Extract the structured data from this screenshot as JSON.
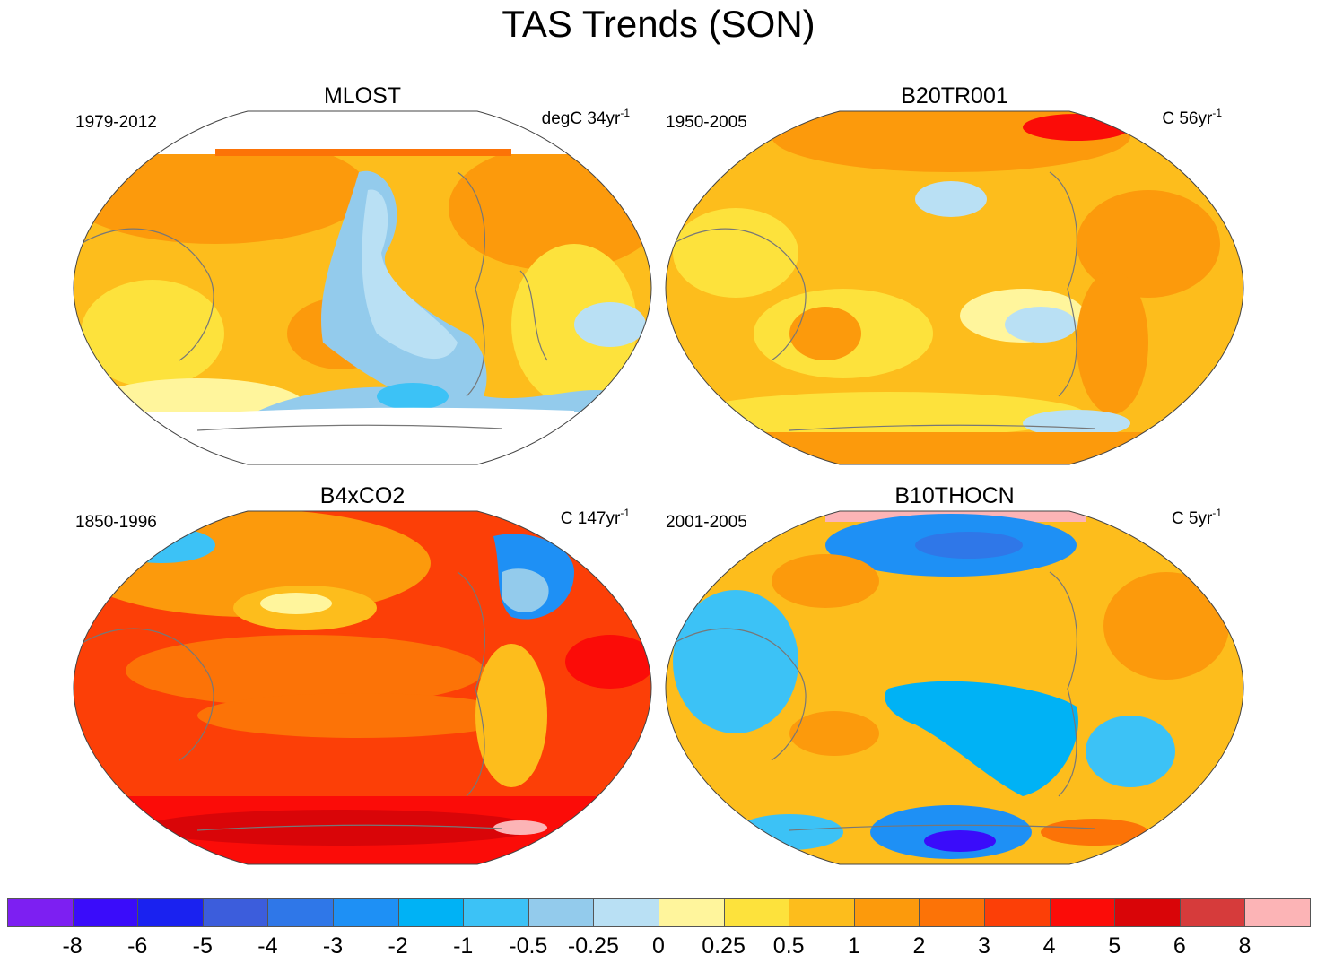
{
  "title": "TAS Trends (SON)",
  "panels": [
    {
      "id": "mlost",
      "name": "MLOST",
      "period": "1979-2012",
      "units_prefix": "degC 34yr",
      "units_exp": "-1"
    },
    {
      "id": "b20tr001",
      "name": "B20TR001",
      "period": "1950-2005",
      "units_prefix": "C 56yr",
      "units_exp": "-1"
    },
    {
      "id": "b4xco2",
      "name": "B4xCO2",
      "period": "1850-1996",
      "units_prefix": "C 147yr",
      "units_exp": "-1"
    },
    {
      "id": "b10thocn",
      "name": "B10THOCN",
      "period": "2001-2005",
      "units_prefix": "C 5yr",
      "units_exp": "-1"
    }
  ],
  "colorbar": {
    "colors": [
      "#7d1ff2",
      "#3a0cfa",
      "#1a22f0",
      "#3c5ddc",
      "#2f77e8",
      "#1e90f5",
      "#00b2f5",
      "#3cc2f6",
      "#93cbec",
      "#b9e0f4",
      "#fff59c",
      "#fde23c",
      "#fdbd1c",
      "#fc9a0c",
      "#fc7307",
      "#fc3f07",
      "#fb0c08",
      "#d90508",
      "#d63b3b",
      "#fcb4b6"
    ],
    "labels": [
      "-8",
      "-6",
      "-5",
      "-4",
      "-3",
      "-2",
      "-1",
      "-0.5",
      "-0.25",
      "0",
      "0.25",
      "0.5",
      "1",
      "2",
      "3",
      "4",
      "5",
      "6",
      "8"
    ]
  }
}
